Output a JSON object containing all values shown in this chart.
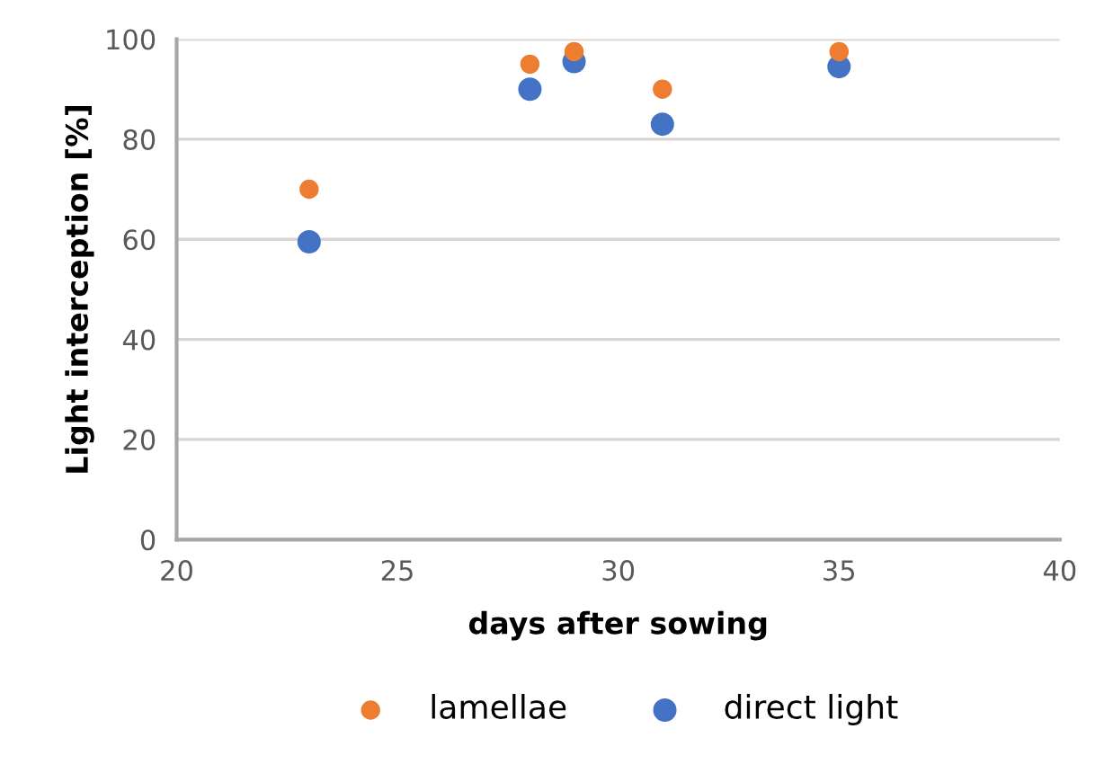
{
  "chart_data": {
    "type": "scatter",
    "xlabel": "days after sowing",
    "ylabel": "Light interception [%]",
    "x": [
      23,
      28,
      29,
      31,
      35
    ],
    "series": [
      {
        "name": "lamellae",
        "color": "#ed7d31",
        "values": [
          70,
          95,
          97.5,
          90,
          97.5
        ]
      },
      {
        "name": "direct light",
        "color": "#4472c4",
        "values": [
          59.5,
          90,
          95.5,
          83,
          94.5
        ]
      }
    ],
    "xlim": [
      20,
      40
    ],
    "xticks": [
      20,
      25,
      30,
      35,
      40
    ],
    "ylim": [
      0,
      100
    ],
    "yticks": [
      0,
      20,
      40,
      60,
      80,
      100
    ],
    "grid": "y",
    "legend": "bottom",
    "marker": "circle"
  }
}
